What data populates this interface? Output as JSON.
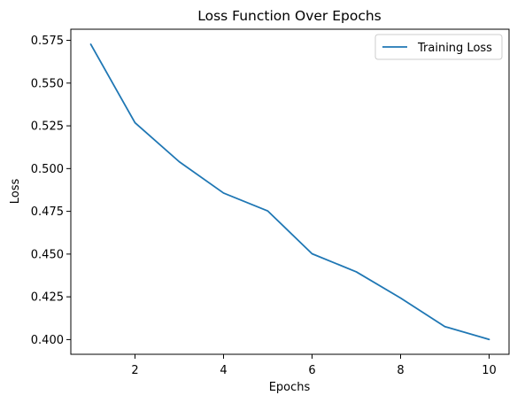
{
  "chart_data": {
    "type": "line",
    "title": "Loss Function Over Epochs",
    "xlabel": "Epochs",
    "ylabel": "Loss",
    "xlim": [
      0.55,
      10.45
    ],
    "ylim": [
      0.3914,
      0.5815
    ],
    "xticks": [
      2,
      4,
      6,
      8,
      10
    ],
    "xtick_labels": [
      "2",
      "4",
      "6",
      "8",
      "10"
    ],
    "yticks": [
      0.4,
      0.425,
      0.45,
      0.475,
      0.5,
      0.525,
      0.55,
      0.575
    ],
    "ytick_labels": [
      "0.400",
      "0.425",
      "0.450",
      "0.475",
      "0.500",
      "0.525",
      "0.550",
      "0.575"
    ],
    "grid": false,
    "legend_position": "top-right",
    "series": [
      {
        "name": "Training Loss",
        "color": "#1f77b4",
        "x": [
          1,
          2,
          3,
          4,
          5,
          6,
          7,
          8,
          9,
          10
        ],
        "y": [
          0.5727,
          0.5268,
          0.504,
          0.4857,
          0.4752,
          0.4502,
          0.4396,
          0.4243,
          0.4076,
          0.4001
        ]
      }
    ]
  }
}
